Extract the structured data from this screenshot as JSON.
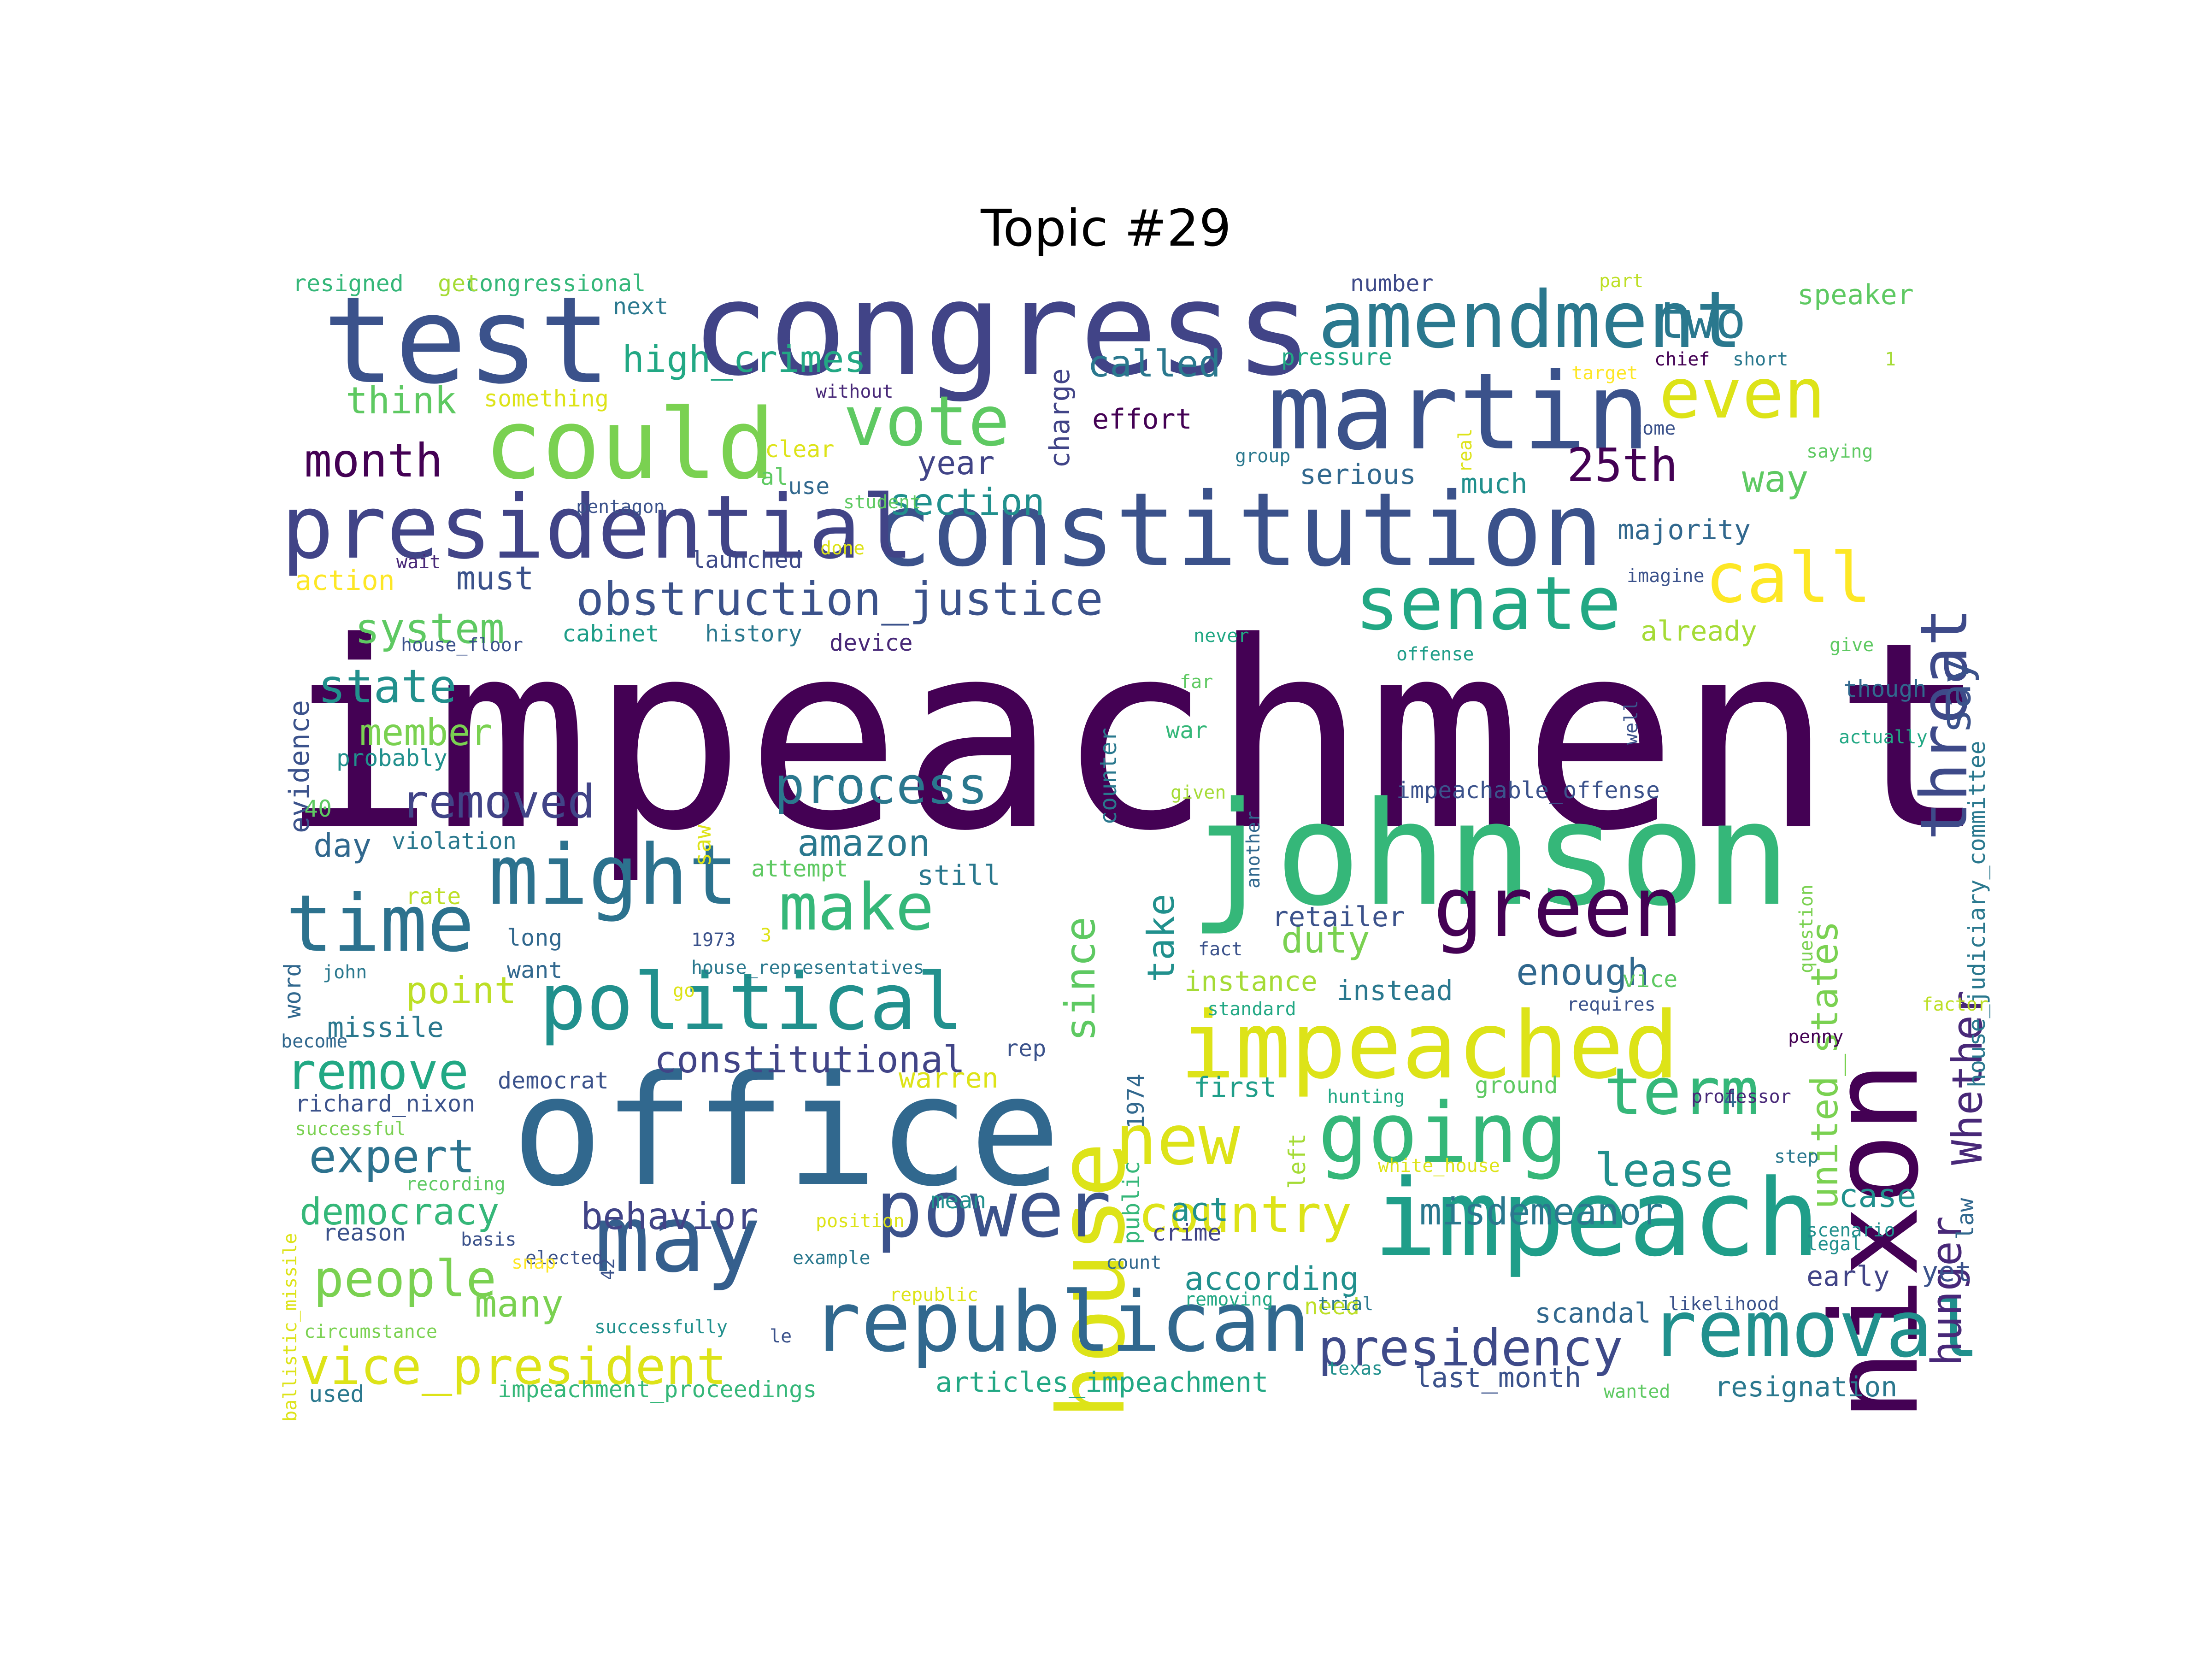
{
  "title": "Topic #29",
  "palette": [
    "#440154",
    "#46327e",
    "#365c8d",
    "#277f8e",
    "#1fa187",
    "#4ac16d",
    "#a0da39",
    "#fde725"
  ],
  "words": [
    {
      "text": "impeachment",
      "color": "#440154"
    },
    {
      "text": "congress",
      "color": "#414487"
    },
    {
      "text": "office",
      "color": "#31688e"
    },
    {
      "text": "johnson",
      "color": "#35b779"
    },
    {
      "text": "nixon",
      "color": "#440154"
    },
    {
      "text": "test",
      "color": "#3b528b"
    },
    {
      "text": "constitution",
      "color": "#3b528b"
    },
    {
      "text": "martin",
      "color": "#3b528b"
    },
    {
      "text": "house",
      "color": "#dde318"
    },
    {
      "text": "impeach",
      "color": "#1f9e89"
    },
    {
      "text": "may",
      "color": "#355f8d"
    },
    {
      "text": "presidential",
      "color": "#414487"
    },
    {
      "text": "could",
      "color": "#7ad151"
    },
    {
      "text": "amendment",
      "color": "#2a788e"
    },
    {
      "text": "impeached",
      "color": "#dde318"
    },
    {
      "text": "might",
      "color": "#2c728e"
    },
    {
      "text": "green",
      "color": "#440154"
    },
    {
      "text": "republican",
      "color": "#31688e"
    },
    {
      "text": "political",
      "color": "#21908d"
    },
    {
      "text": "power",
      "color": "#3b528b"
    },
    {
      "text": "time",
      "color": "#2c728e"
    },
    {
      "text": "removal",
      "color": "#21908d"
    },
    {
      "text": "going",
      "color": "#35b779"
    },
    {
      "text": "senate",
      "color": "#22a884"
    },
    {
      "text": "even",
      "color": "#dde318"
    },
    {
      "text": "vote",
      "color": "#5ec962"
    },
    {
      "text": "threat",
      "color": "#3e4a89"
    },
    {
      "text": "call",
      "color": "#fde725"
    },
    {
      "text": "new",
      "color": "#dde318"
    },
    {
      "text": "term",
      "color": "#35b779"
    },
    {
      "text": "make",
      "color": "#35b779"
    },
    {
      "text": "obstruction_justice",
      "color": "#3b528b"
    },
    {
      "text": "presidency",
      "color": "#3e4a89"
    },
    {
      "text": "vice_president",
      "color": "#dde318"
    },
    {
      "text": "people",
      "color": "#7ad151"
    },
    {
      "text": "say",
      "color": "#3b528b"
    },
    {
      "text": "hunger",
      "color": "#482878"
    },
    {
      "text": "Whether",
      "color": "#482878"
    },
    {
      "text": "united_states",
      "color": "#7ad151"
    },
    {
      "text": "since",
      "color": "#5ec962"
    },
    {
      "text": "country",
      "color": "#dde318"
    },
    {
      "text": "25th",
      "color": "#440154"
    },
    {
      "text": "two",
      "color": "#2a788e"
    },
    {
      "text": "month",
      "color": "#440154"
    },
    {
      "text": "remove",
      "color": "#22a884"
    },
    {
      "text": "expert",
      "color": "#2c728e"
    },
    {
      "text": "removed",
      "color": "#414487"
    },
    {
      "text": "process",
      "color": "#2a788e"
    },
    {
      "text": "state",
      "color": "#21908d"
    },
    {
      "text": "lease",
      "color": "#21908d"
    },
    {
      "text": "misdemeanor",
      "color": "#2a788e"
    },
    {
      "text": "high_crimes",
      "color": "#22a884"
    },
    {
      "text": "called",
      "color": "#2a788e"
    },
    {
      "text": "section",
      "color": "#21908d"
    },
    {
      "text": "democracy",
      "color": "#35b779"
    },
    {
      "text": "behavior",
      "color": "#414487"
    },
    {
      "text": "constitutional",
      "color": "#414487"
    },
    {
      "text": "many",
      "color": "#7ad151"
    },
    {
      "text": "system",
      "color": "#5ec962"
    },
    {
      "text": "think",
      "color": "#5ec962"
    },
    {
      "text": "member",
      "color": "#7ad151"
    },
    {
      "text": "amazon",
      "color": "#2a788e"
    },
    {
      "text": "according",
      "color": "#21908d"
    },
    {
      "text": "enough",
      "color": "#31688e"
    },
    {
      "text": "take",
      "color": "#21908d"
    },
    {
      "text": "duty",
      "color": "#7ad151"
    },
    {
      "text": "point",
      "color": "#bddf26"
    },
    {
      "text": "case",
      "color": "#21908d"
    },
    {
      "text": "year",
      "color": "#414487"
    },
    {
      "text": "must",
      "color": "#3b528b"
    },
    {
      "text": "way",
      "color": "#5ec962"
    },
    {
      "text": "day",
      "color": "#31688e"
    },
    {
      "text": "act",
      "color": "#21908d"
    },
    {
      "text": "still",
      "color": "#2a788e"
    },
    {
      "text": "instance",
      "color": "#a5db36"
    },
    {
      "text": "warren",
      "color": "#dde318"
    },
    {
      "text": "first",
      "color": "#1f9e89"
    },
    {
      "text": "missile",
      "color": "#2a788e"
    },
    {
      "text": "serious",
      "color": "#31688e"
    },
    {
      "text": "much",
      "color": "#21908d"
    },
    {
      "text": "majority",
      "color": "#31688e"
    },
    {
      "text": "already",
      "color": "#a5db36"
    },
    {
      "text": "resignation",
      "color": "#2a788e"
    },
    {
      "text": "articles_impeachment",
      "color": "#22a884"
    },
    {
      "text": "impeachment_proceedings",
      "color": "#35b779"
    },
    {
      "text": "last_month",
      "color": "#3b528b"
    },
    {
      "text": "scandal",
      "color": "#31688e"
    },
    {
      "text": "early",
      "color": "#414487"
    },
    {
      "text": "yet",
      "color": "#3b528b"
    },
    {
      "text": "law",
      "color": "#31688e"
    },
    {
      "text": "house_judiciary_committee",
      "color": "#2a788e"
    },
    {
      "text": "speaker",
      "color": "#5ec962"
    },
    {
      "text": "pressure",
      "color": "#22a884"
    },
    {
      "text": "number",
      "color": "#3e4a89"
    },
    {
      "text": "next",
      "color": "#2a788e"
    },
    {
      "text": "charge",
      "color": "#414487"
    },
    {
      "text": "effort",
      "color": "#440154"
    },
    {
      "text": "congressional",
      "color": "#35b779"
    },
    {
      "text": "get",
      "color": "#a5db36"
    },
    {
      "text": "resigned",
      "color": "#35b779"
    },
    {
      "text": "something",
      "color": "#dde318"
    },
    {
      "text": "action",
      "color": "#fde725"
    },
    {
      "text": "history",
      "color": "#2a788e"
    },
    {
      "text": "cabinet",
      "color": "#1f9e89"
    },
    {
      "text": "device",
      "color": "#482878"
    },
    {
      "text": "evidence",
      "color": "#3b528b"
    },
    {
      "text": "probably",
      "color": "#21908d"
    },
    {
      "text": "violation",
      "color": "#2a788e"
    },
    {
      "text": "rate",
      "color": "#bddf26"
    },
    {
      "text": "long",
      "color": "#31688e"
    },
    {
      "text": "want",
      "color": "#31688e"
    },
    {
      "text": "word",
      "color": "#31688e"
    },
    {
      "text": "democrat",
      "color": "#3b528b"
    },
    {
      "text": "richard_nixon",
      "color": "#3b528b"
    },
    {
      "text": "reason",
      "color": "#3b528b"
    },
    {
      "text": "used",
      "color": "#2a788e"
    },
    {
      "text": "mean",
      "color": "#21908d"
    },
    {
      "text": "rep",
      "color": "#3b528b"
    },
    {
      "text": "crime",
      "color": "#414487"
    },
    {
      "text": "need",
      "color": "#bddf26"
    },
    {
      "text": "retailer",
      "color": "#3b528b"
    },
    {
      "text": "instead",
      "color": "#2a788e"
    },
    {
      "text": "ground",
      "color": "#5ec962"
    },
    {
      "text": "impeachable_offense",
      "color": "#3b528b"
    },
    {
      "text": "though",
      "color": "#31688e"
    },
    {
      "text": "war",
      "color": "#35b779"
    },
    {
      "text": "public",
      "color": "#35b779"
    },
    {
      "text": "left",
      "color": "#a5db36"
    },
    {
      "text": "counter",
      "color": "#2a788e"
    },
    {
      "text": "1974",
      "color": "#31688e"
    },
    {
      "text": "saw",
      "color": "#dde318"
    },
    {
      "text": "attempt",
      "color": "#5ec962"
    },
    {
      "text": "40",
      "color": "#5ec962"
    },
    {
      "text": "vice",
      "color": "#5ec962"
    },
    {
      "text": "4",
      "color": "#31688e"
    },
    {
      "text": "launched",
      "color": "#3e4a89"
    },
    {
      "text": "use",
      "color": "#31688e"
    },
    {
      "text": "al",
      "color": "#5ec962"
    },
    {
      "text": "clear",
      "color": "#dde318"
    },
    {
      "text": "wait",
      "color": "#482878"
    },
    {
      "text": "pentagon",
      "color": "#3b528b"
    },
    {
      "text": "student",
      "color": "#5ec962"
    },
    {
      "text": "house_floor",
      "color": "#3b528b"
    },
    {
      "text": "without",
      "color": "#482878"
    },
    {
      "text": "done",
      "color": "#dde318"
    },
    {
      "text": "never",
      "color": "#22a884"
    },
    {
      "text": "group",
      "color": "#2a788e"
    },
    {
      "text": "real",
      "color": "#dde318"
    },
    {
      "text": "target",
      "color": "#fde725"
    },
    {
      "text": "chief",
      "color": "#440154"
    },
    {
      "text": "short",
      "color": "#2a788e"
    },
    {
      "text": "part",
      "color": "#bddf26"
    },
    {
      "text": "1",
      "color": "#a5db36"
    },
    {
      "text": "come",
      "color": "#3b528b"
    },
    {
      "text": "saying",
      "color": "#5ec962"
    },
    {
      "text": "imagine",
      "color": "#3b528b"
    },
    {
      "text": "offense",
      "color": "#1f9e89"
    },
    {
      "text": "give",
      "color": "#5ec962"
    },
    {
      "text": "well",
      "color": "#3b528b"
    },
    {
      "text": "far",
      "color": "#5ec962"
    },
    {
      "text": "actually",
      "color": "#22a884"
    },
    {
      "text": "given",
      "color": "#a5db36"
    },
    {
      "text": "another",
      "color": "#31688e"
    },
    {
      "text": "question",
      "color": "#7ad151"
    },
    {
      "text": "fact",
      "color": "#3b528b"
    },
    {
      "text": "1973",
      "color": "#3b528b"
    },
    {
      "text": "3",
      "color": "#dde318"
    },
    {
      "text": "house_representatives",
      "color": "#2a788e"
    },
    {
      "text": "john",
      "color": "#2a788e"
    },
    {
      "text": "become",
      "color": "#31688e"
    },
    {
      "text": "successful",
      "color": "#7ad151"
    },
    {
      "text": "go",
      "color": "#dde318"
    },
    {
      "text": "standard",
      "color": "#22a884"
    },
    {
      "text": "requires",
      "color": "#3b528b"
    },
    {
      "text": "penny",
      "color": "#440154"
    },
    {
      "text": "factor",
      "color": "#bddf26"
    },
    {
      "text": "professor",
      "color": "#482878"
    },
    {
      "text": "hunting",
      "color": "#22a884"
    },
    {
      "text": "white_house",
      "color": "#dde318"
    },
    {
      "text": "step",
      "color": "#2a788e"
    },
    {
      "text": "scenario",
      "color": "#21908d"
    },
    {
      "text": "legal",
      "color": "#21908d"
    },
    {
      "text": "recording",
      "color": "#5ec962"
    },
    {
      "text": "position",
      "color": "#dde318"
    },
    {
      "text": "basis",
      "color": "#3b528b"
    },
    {
      "text": "elected",
      "color": "#3b528b"
    },
    {
      "text": "example",
      "color": "#2a788e"
    },
    {
      "text": "count",
      "color": "#31688e"
    },
    {
      "text": "republic",
      "color": "#dde318"
    },
    {
      "text": "removing",
      "color": "#22a884"
    },
    {
      "text": "trial",
      "color": "#2a788e"
    },
    {
      "text": "likelihood",
      "color": "#3b528b"
    },
    {
      "text": "texas",
      "color": "#21908d"
    },
    {
      "text": "wanted",
      "color": "#5ec962"
    },
    {
      "text": "snap",
      "color": "#fde725"
    },
    {
      "text": "42",
      "color": "#3b528b"
    },
    {
      "text": "circumstance",
      "color": "#7ad151"
    },
    {
      "text": "successfully",
      "color": "#21908d"
    },
    {
      "text": "le",
      "color": "#3b528b"
    },
    {
      "text": "ballistic_missile",
      "color": "#dde318"
    }
  ]
}
